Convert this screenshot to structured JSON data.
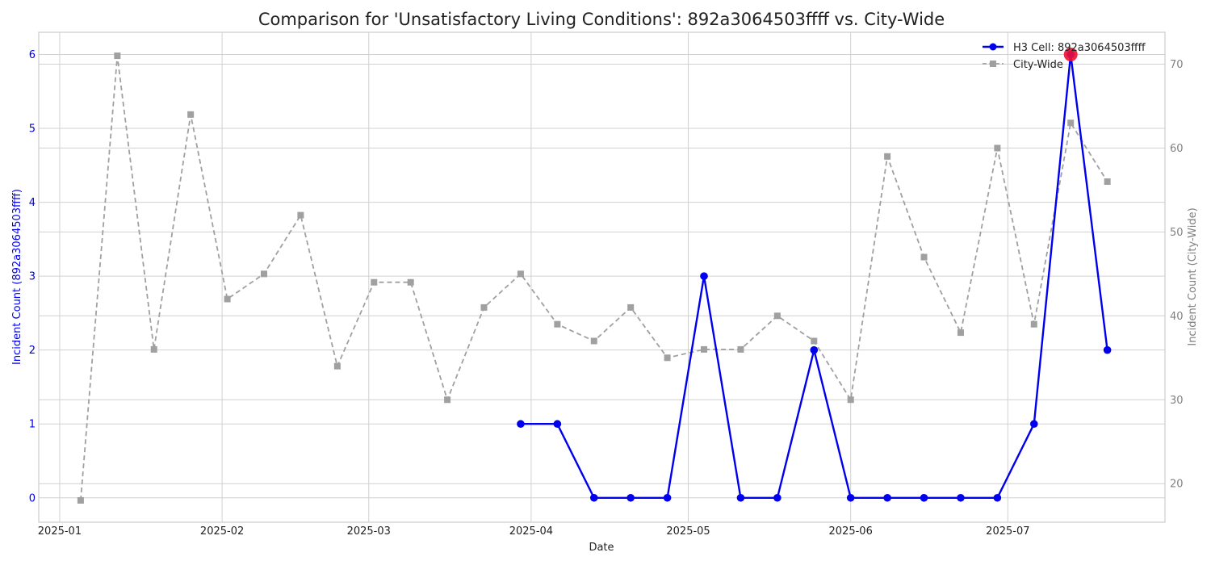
{
  "chart_data": {
    "type": "line",
    "title": "Comparison for 'Unsatisfactory Living Conditions': 892a3064503ffff vs. City-Wide",
    "xlabel": "Date",
    "ylabel_left": "Incident Count (892a3064503ffff)",
    "ylabel_right": "Incident Count (City-Wide)",
    "x_ticks": [
      "2025-01",
      "2025-02",
      "2025-03",
      "2025-04",
      "2025-05",
      "2025-06",
      "2025-07"
    ],
    "x_range": [
      "2024-12-28",
      "2025-07-31"
    ],
    "y_left_ticks": [
      0,
      1,
      2,
      3,
      4,
      5,
      6
    ],
    "y_left_range": [
      -0.33,
      6.3
    ],
    "y_right_ticks": [
      20,
      30,
      40,
      50,
      60,
      70
    ],
    "y_right_range": [
      15.4,
      73.8
    ],
    "grid": true,
    "legend_position": "top-right",
    "colors": {
      "cell": "#0000ee",
      "citywide": "#a0a0a0",
      "highlight": "#ee1133",
      "left_axis": "#0000ee",
      "right_axis": "#808080"
    },
    "series": [
      {
        "name": "H3 Cell: 892a3064503ffff",
        "axis": "left",
        "style": "solid-circle",
        "points": [
          [
            "2025-03-30",
            1
          ],
          [
            "2025-04-06",
            1
          ],
          [
            "2025-04-13",
            0
          ],
          [
            "2025-04-20",
            0
          ],
          [
            "2025-04-27",
            0
          ],
          [
            "2025-05-04",
            3
          ],
          [
            "2025-05-11",
            0
          ],
          [
            "2025-05-18",
            0
          ],
          [
            "2025-05-25",
            2
          ],
          [
            "2025-06-01",
            0
          ],
          [
            "2025-06-08",
            0
          ],
          [
            "2025-06-15",
            0
          ],
          [
            "2025-06-22",
            0
          ],
          [
            "2025-06-29",
            0
          ],
          [
            "2025-07-06",
            1
          ],
          [
            "2025-07-13",
            6
          ],
          [
            "2025-07-20",
            2
          ]
        ]
      },
      {
        "name": "City-Wide",
        "axis": "right",
        "style": "dashed-square",
        "points": [
          [
            "2025-01-05",
            18
          ],
          [
            "2025-01-12",
            71
          ],
          [
            "2025-01-19",
            36
          ],
          [
            "2025-01-26",
            64
          ],
          [
            "2025-02-02",
            42
          ],
          [
            "2025-02-09",
            45
          ],
          [
            "2025-02-16",
            52
          ],
          [
            "2025-02-23",
            34
          ],
          [
            "2025-03-02",
            44
          ],
          [
            "2025-03-09",
            44
          ],
          [
            "2025-03-16",
            30
          ],
          [
            "2025-03-23",
            41
          ],
          [
            "2025-03-30",
            45
          ],
          [
            "2025-04-06",
            39
          ],
          [
            "2025-04-13",
            37
          ],
          [
            "2025-04-20",
            41
          ],
          [
            "2025-04-27",
            35
          ],
          [
            "2025-05-04",
            36
          ],
          [
            "2025-05-11",
            36
          ],
          [
            "2025-05-18",
            40
          ],
          [
            "2025-05-25",
            37
          ],
          [
            "2025-06-01",
            30
          ],
          [
            "2025-06-08",
            59
          ],
          [
            "2025-06-15",
            47
          ],
          [
            "2025-06-22",
            38
          ],
          [
            "2025-06-29",
            60
          ],
          [
            "2025-07-06",
            39
          ],
          [
            "2025-07-13",
            63
          ],
          [
            "2025-07-20",
            56
          ]
        ]
      }
    ],
    "highlight": {
      "series": "H3 Cell: 892a3064503ffff",
      "date": "2025-07-13",
      "value": 6
    }
  }
}
